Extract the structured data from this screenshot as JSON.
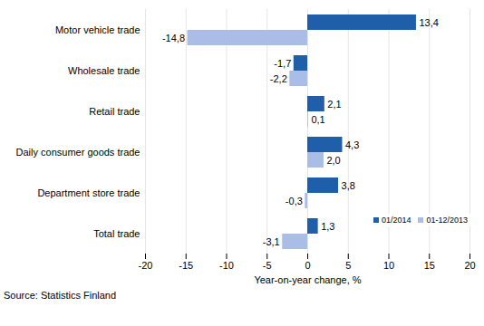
{
  "chart_data": {
    "type": "bar",
    "orientation": "horizontal",
    "categories": [
      "Motor vehicle trade",
      "Wholesale trade",
      "Retail trade",
      "Daily consumer goods trade",
      "Department store trade",
      "Total trade"
    ],
    "series": [
      {
        "name": "01/2014",
        "color": "#1f5ea8",
        "values": [
          13.4,
          -1.7,
          2.1,
          4.3,
          3.8,
          1.3
        ],
        "value_labels": [
          "13,4",
          "-1,7",
          "2,1",
          "4,3",
          "3,8",
          "1,3"
        ]
      },
      {
        "name": "01-12/2013",
        "color": "#a9bde6",
        "values": [
          -14.8,
          -2.2,
          0.1,
          2.0,
          -0.3,
          -3.1
        ],
        "value_labels": [
          "-14,8",
          "-2,2",
          "0,1",
          "2,0",
          "-0,3",
          "-3,1"
        ]
      }
    ],
    "xlim": [
      -20,
      20
    ],
    "xticks": [
      -20,
      -15,
      -10,
      -5,
      0,
      5,
      10,
      15,
      20
    ],
    "xlabel": "Year-on-year change, %",
    "grid": true,
    "data_labels": true,
    "legend": "lower right",
    "caption": "Source: Statistics Finland"
  }
}
